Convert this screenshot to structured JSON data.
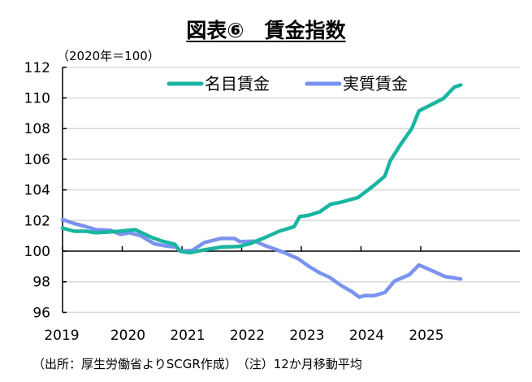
{
  "chart_data": {
    "type": "line",
    "title": "図表⑥　賃金指数",
    "unit_label": "（2020年＝100）",
    "note": "（出所：厚生労働省よりSCGR作成）　（注）12か月移動平均",
    "xlabel": "",
    "ylabel": "",
    "xlim": [
      2019,
      2025.75
    ],
    "ylim": [
      96,
      112
    ],
    "yticks": [
      96,
      98,
      100,
      102,
      104,
      106,
      108,
      110,
      112
    ],
    "xticks": [
      "2019",
      "2020",
      "2021",
      "2022",
      "2023",
      "2024",
      "2025"
    ],
    "legend_position": "top",
    "grid": true,
    "series": [
      {
        "name": "名目賃金",
        "color": "#1ab5a0",
        "x": [
          2019.0,
          2019.2,
          2019.4,
          2019.56,
          2019.95,
          2020.22,
          2020.49,
          2020.67,
          2020.88,
          2020.97,
          2021.13,
          2021.4,
          2021.67,
          2021.95,
          2022.15,
          2022.4,
          2022.63,
          2022.88,
          2022.97,
          2023.13,
          2023.31,
          2023.49,
          2023.67,
          2023.95,
          2024.22,
          2024.4,
          2024.49,
          2024.67,
          2024.85,
          2024.97,
          2025.13,
          2025.38,
          2025.56,
          2025.67
        ],
        "values": [
          101.5,
          101.3,
          101.3,
          101.2,
          101.3,
          101.4,
          100.9,
          100.65,
          100.45,
          100.0,
          99.9,
          100.1,
          100.27,
          100.3,
          100.5,
          100.9,
          101.3,
          101.6,
          102.25,
          102.35,
          102.57,
          103.06,
          103.2,
          103.5,
          104.3,
          104.9,
          105.9,
          107.0,
          108.0,
          109.15,
          109.47,
          109.96,
          110.7,
          110.85
        ]
      },
      {
        "name": "実質賃金",
        "color": "#7b93f0",
        "x": [
          2019.0,
          2019.2,
          2019.45,
          2019.56,
          2019.8,
          2019.97,
          2020.13,
          2020.31,
          2020.54,
          2020.76,
          2020.9,
          2020.97,
          2021.17,
          2021.38,
          2021.65,
          2021.88,
          2021.97,
          2022.22,
          2022.4,
          2022.72,
          2022.95,
          2023.13,
          2023.31,
          2023.47,
          2023.67,
          2023.85,
          2023.97,
          2024.06,
          2024.22,
          2024.4,
          2024.56,
          2024.81,
          2024.97,
          2025.22,
          2025.4,
          2025.67
        ],
        "values": [
          102.07,
          101.8,
          101.54,
          101.4,
          101.36,
          101.1,
          101.2,
          101.0,
          100.48,
          100.32,
          100.27,
          100.0,
          100.05,
          100.57,
          100.83,
          100.83,
          100.62,
          100.65,
          100.35,
          99.9,
          99.5,
          99.0,
          98.58,
          98.3,
          97.75,
          97.35,
          97.0,
          97.1,
          97.1,
          97.3,
          98.05,
          98.46,
          99.1,
          98.67,
          98.35,
          98.18
        ]
      }
    ]
  }
}
